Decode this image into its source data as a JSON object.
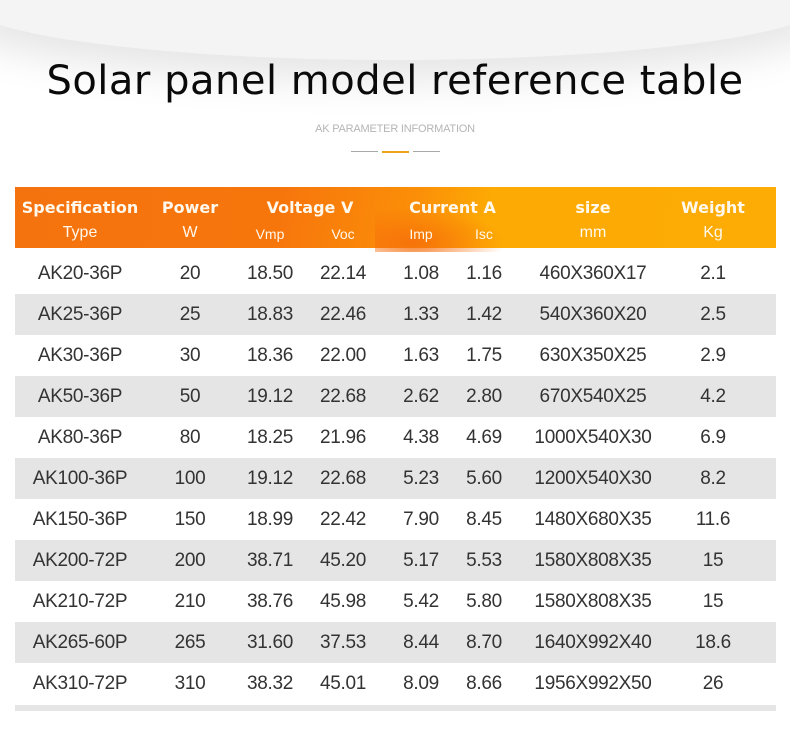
{
  "header": {
    "title": "Solar panel model reference table",
    "subtitle": "AK PARAMETER INFORMATION",
    "divider_colors": [
      "#a9a9a9",
      "#f0a21b",
      "#a9a9a9"
    ]
  },
  "table": {
    "colors": {
      "header_gradient_start": "#f5730f",
      "header_gradient_end": "#fdab05",
      "header_text": "#fff8ec",
      "alt_row": "#e5e5e5",
      "body_text": "#333333"
    },
    "group_headers": {
      "spec": "Specification",
      "power": "Power",
      "voltage": "Voltage V",
      "current": "Current A",
      "size": "size",
      "weight": "Weight"
    },
    "sub_headers": {
      "type": "Type",
      "w": "W",
      "vmp": "Vmp",
      "voc": "Voc",
      "imp": "Imp",
      "isc": "Isc",
      "mm": "mm",
      "kg": "Kg"
    },
    "rows": [
      {
        "type": "AK20-36P",
        "w": "20",
        "vmp": "18.50",
        "voc": "22.14",
        "imp": "1.08",
        "isc": "1.16",
        "size": "460X360X17",
        "kg": "2.1"
      },
      {
        "type": "AK25-36P",
        "w": "25",
        "vmp": "18.83",
        "voc": "22.46",
        "imp": "1.33",
        "isc": "1.42",
        "size": "540X360X20",
        "kg": "2.5"
      },
      {
        "type": "AK30-36P",
        "w": "30",
        "vmp": "18.36",
        "voc": "22.00",
        "imp": "1.63",
        "isc": "1.75",
        "size": "630X350X25",
        "kg": "2.9"
      },
      {
        "type": "AK50-36P",
        "w": "50",
        "vmp": "19.12",
        "voc": "22.68",
        "imp": "2.62",
        "isc": "2.80",
        "size": "670X540X25",
        "kg": "4.2"
      },
      {
        "type": "AK80-36P",
        "w": "80",
        "vmp": "18.25",
        "voc": "21.96",
        "imp": "4.38",
        "isc": "4.69",
        "size": "1000X540X30",
        "kg": "6.9"
      },
      {
        "type": "AK100-36P",
        "w": "100",
        "vmp": "19.12",
        "voc": "22.68",
        "imp": "5.23",
        "isc": "5.60",
        "size": "1200X540X30",
        "kg": "8.2"
      },
      {
        "type": "AK150-36P",
        "w": "150",
        "vmp": "18.99",
        "voc": "22.42",
        "imp": "7.90",
        "isc": "8.45",
        "size": "1480X680X35",
        "kg": "11.6"
      },
      {
        "type": "AK200-72P",
        "w": "200",
        "vmp": "38.71",
        "voc": "45.20",
        "imp": "5.17",
        "isc": "5.53",
        "size": "1580X808X35",
        "kg": "15"
      },
      {
        "type": "AK210-72P",
        "w": "210",
        "vmp": "38.76",
        "voc": "45.98",
        "imp": "5.42",
        "isc": "5.80",
        "size": "1580X808X35",
        "kg": "15"
      },
      {
        "type": "AK265-60P",
        "w": "265",
        "vmp": "31.60",
        "voc": "37.53",
        "imp": "8.44",
        "isc": "8.70",
        "size": "1640X992X40",
        "kg": "18.6"
      },
      {
        "type": "AK310-72P",
        "w": "310",
        "vmp": "38.32",
        "voc": "45.01",
        "imp": "8.09",
        "isc": "8.66",
        "size": "1956X992X50",
        "kg": "26"
      }
    ]
  }
}
